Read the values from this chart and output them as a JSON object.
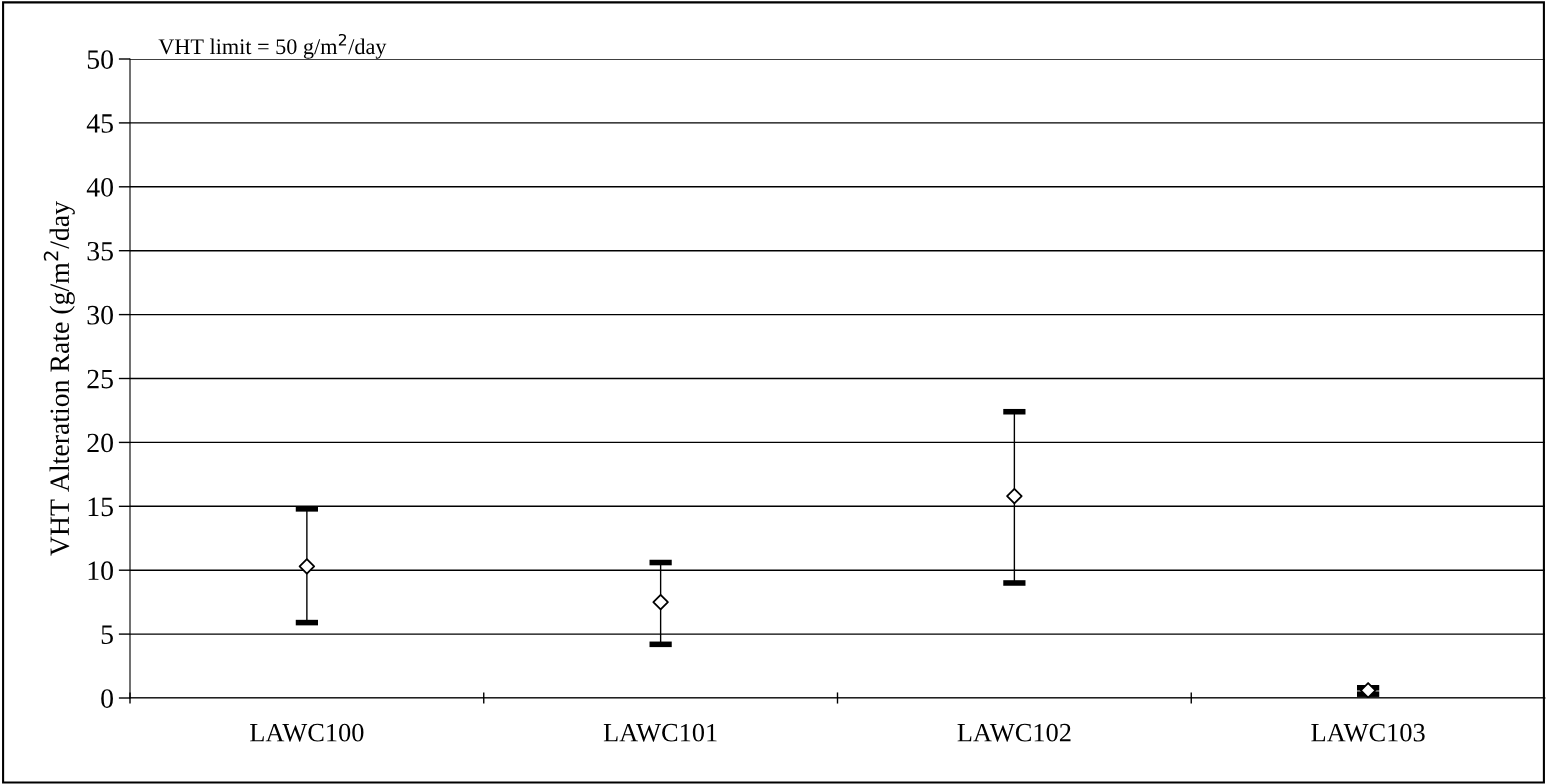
{
  "chart_data": {
    "type": "scatter",
    "ylabel": "VHT Alteration Rate (g/m$^{2}$/day",
    "categories": [
      "LAWC100",
      "LAWC101",
      "LAWC102",
      "LAWC103"
    ],
    "series": [
      {
        "color": "#000000",
        "values": [
          10.3,
          7.5,
          15.8,
          0.6
        ],
        "errors": [
          [
            5.9,
            14.8
          ],
          [
            4.2,
            10.6
          ],
          [
            9.0,
            22.4
          ],
          [
            0.3,
            0.8
          ]
        ]
      }
    ],
    "marker": "diamond",
    "ylim": [
      0,
      50
    ],
    "yticks": [
      0,
      5,
      10,
      15,
      20,
      25,
      30,
      35,
      40,
      45,
      50
    ],
    "grid": "y",
    "annotations": [
      "VHT limit = 50 g/m$^{2}$/day"
    ]
  }
}
